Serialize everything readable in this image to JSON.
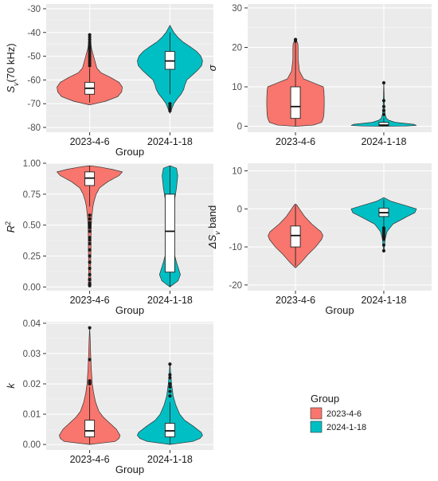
{
  "chart_data": [
    {
      "type": "violin",
      "id": "sv",
      "ylabel": "S_v(70 kHz)",
      "xlabel": "Group",
      "categories": [
        "2023-4-6",
        "2024-1-18"
      ],
      "ylim": [
        -82,
        -28
      ],
      "yticks": [
        -30,
        -40,
        -50,
        -60,
        -70,
        -80
      ],
      "series": [
        {
          "name": "2023-4-6",
          "color": "#F8766D",
          "profile": [
            [
              -70.5,
              0
            ],
            [
              -69,
              0.48
            ],
            [
              -67,
              0.86
            ],
            [
              -65,
              0.98
            ],
            [
              -63,
              1.0
            ],
            [
              -61,
              0.9
            ],
            [
              -59,
              0.65
            ],
            [
              -57,
              0.35
            ],
            [
              -55,
              0.22
            ],
            [
              -53,
              0.18
            ],
            [
              -51,
              0.14
            ],
            [
              -49,
              0.1
            ],
            [
              -47,
              0.06
            ],
            [
              -45,
              0.04
            ],
            [
              -42,
              0.02
            ],
            [
              -41,
              0
            ]
          ],
          "box": {
            "min": -69.5,
            "q1": -66,
            "median": -63.5,
            "q3": -61,
            "max": -55
          },
          "outliers": [
            -41,
            -42,
            -43,
            -44,
            -45,
            -46,
            -47,
            -48,
            -49,
            -50,
            -51,
            -52,
            -53,
            -54
          ]
        },
        {
          "name": "2024-1-18",
          "color": "#00BFC4",
          "profile": [
            [
              -74,
              0
            ],
            [
              -72,
              0.06
            ],
            [
              -70,
              0.12
            ],
            [
              -68,
              0.22
            ],
            [
              -66,
              0.34
            ],
            [
              -64,
              0.42
            ],
            [
              -62,
              0.46
            ],
            [
              -60,
              0.52
            ],
            [
              -58,
              0.68
            ],
            [
              -56,
              0.84
            ],
            [
              -54,
              0.97
            ],
            [
              -52,
              1.0
            ],
            [
              -50,
              0.95
            ],
            [
              -48,
              0.82
            ],
            [
              -46,
              0.62
            ],
            [
              -44,
              0.4
            ],
            [
              -42,
              0.24
            ],
            [
              -40,
              0.12
            ],
            [
              -38,
              0.04
            ],
            [
              -37,
              0
            ]
          ],
          "box": {
            "min": -66,
            "q1": -55.5,
            "median": -52,
            "q3": -48,
            "max": -40
          },
          "outliers": [
            -70,
            -71,
            -72,
            -73
          ]
        }
      ]
    },
    {
      "type": "violin",
      "id": "sigma",
      "ylabel": "σ",
      "xlabel": "",
      "categories": [
        "2023-4-6",
        "2024-1-18"
      ],
      "ylim": [
        -1.5,
        31
      ],
      "yticks": [
        0,
        10,
        20,
        30
      ],
      "series": [
        {
          "name": "2023-4-6",
          "color": "#F8766D",
          "profile": [
            [
              0,
              0
            ],
            [
              0.3,
              0.55
            ],
            [
              1,
              0.8
            ],
            [
              2,
              0.85
            ],
            [
              3,
              0.87
            ],
            [
              5,
              0.88
            ],
            [
              7,
              0.88
            ],
            [
              9,
              0.87
            ],
            [
              10,
              0.85
            ],
            [
              11,
              0.55
            ],
            [
              12,
              0.25
            ],
            [
              14,
              0.12
            ],
            [
              17,
              0.08
            ],
            [
              20,
              0.08
            ],
            [
              21,
              0.07
            ],
            [
              22,
              0
            ]
          ],
          "box": {
            "min": 0,
            "q1": 2,
            "median": 5,
            "q3": 10,
            "max": 21.5
          },
          "outliers": [
            21.6,
            22
          ]
        },
        {
          "name": "2024-1-18",
          "color": "#00BFC4",
          "profile": [
            [
              0,
              0
            ],
            [
              0.05,
              0.6
            ],
            [
              0.2,
              1.0
            ],
            [
              0.5,
              0.92
            ],
            [
              1,
              0.35
            ],
            [
              1.5,
              0.16
            ],
            [
              2,
              0.08
            ],
            [
              3,
              0.04
            ],
            [
              5,
              0.02
            ],
            [
              8,
              0.01
            ],
            [
              11.5,
              0
            ]
          ],
          "box": {
            "min": 0,
            "q1": 0.1,
            "median": 0.3,
            "q3": 1.0,
            "max": 2.2
          },
          "outliers": [
            3,
            4,
            5,
            6.5,
            11
          ]
        }
      ]
    },
    {
      "type": "violin",
      "id": "r2",
      "ylabel": "R^2",
      "xlabel": "Group",
      "categories": [
        "2023-4-6",
        "2024-1-18"
      ],
      "ylim": [
        -0.03,
        1.0
      ],
      "yticks": [
        0.0,
        0.25,
        0.5,
        0.75,
        1.0
      ],
      "series": [
        {
          "name": "2023-4-6",
          "color": "#F8766D",
          "profile": [
            [
              0,
              0
            ],
            [
              0.05,
              0.04
            ],
            [
              0.1,
              0.03
            ],
            [
              0.2,
              0.03
            ],
            [
              0.3,
              0.04
            ],
            [
              0.4,
              0.04
            ],
            [
              0.5,
              0.05
            ],
            [
              0.55,
              0.06
            ],
            [
              0.6,
              0.08
            ],
            [
              0.65,
              0.1
            ],
            [
              0.7,
              0.14
            ],
            [
              0.75,
              0.2
            ],
            [
              0.8,
              0.3
            ],
            [
              0.85,
              0.55
            ],
            [
              0.9,
              0.9
            ],
            [
              0.93,
              1.0
            ],
            [
              0.95,
              0.7
            ],
            [
              0.97,
              0.3
            ],
            [
              0.98,
              0
            ]
          ],
          "box": {
            "min": 0.65,
            "q1": 0.82,
            "median": 0.88,
            "q3": 0.93,
            "max": 0.98
          },
          "outliers": [
            0.01,
            0.02,
            0.03,
            0.06,
            0.1,
            0.15,
            0.2,
            0.25,
            0.3,
            0.35,
            0.38,
            0.4,
            0.45,
            0.48,
            0.5,
            0.52,
            0.55,
            0.58
          ]
        },
        {
          "name": "2024-1-18",
          "color": "#00BFC4",
          "profile": [
            [
              0,
              0
            ],
            [
              0.05,
              0.25
            ],
            [
              0.1,
              0.32
            ],
            [
              0.2,
              0.2
            ],
            [
              0.3,
              0.1
            ],
            [
              0.4,
              0.07
            ],
            [
              0.5,
              0.08
            ],
            [
              0.6,
              0.1
            ],
            [
              0.7,
              0.14
            ],
            [
              0.8,
              0.2
            ],
            [
              0.9,
              0.24
            ],
            [
              0.96,
              0.2
            ],
            [
              0.98,
              0
            ]
          ],
          "box": {
            "min": 0,
            "q1": 0.12,
            "median": 0.45,
            "q3": 0.75,
            "max": 0.98
          },
          "outliers": []
        }
      ]
    },
    {
      "type": "violin",
      "id": "dsv",
      "ylabel": "ΔS_v band",
      "xlabel": "Group",
      "categories": [
        "2023-4-6",
        "2024-1-18"
      ],
      "ylim": [
        -21.5,
        12
      ],
      "yticks": [
        10,
        0,
        -10,
        -20
      ],
      "series": [
        {
          "name": "2023-4-6",
          "color": "#F8766D",
          "profile": [
            [
              -15.5,
              0
            ],
            [
              -14,
              0.18
            ],
            [
              -12,
              0.38
            ],
            [
              -10,
              0.62
            ],
            [
              -8,
              0.8
            ],
            [
              -7,
              0.84
            ],
            [
              -6,
              0.78
            ],
            [
              -4,
              0.5
            ],
            [
              -2,
              0.28
            ],
            [
              0,
              0.12
            ],
            [
              1,
              0.04
            ],
            [
              1.3,
              0
            ]
          ],
          "box": {
            "min": -15,
            "q1": -10,
            "median": -7,
            "q3": -4.5,
            "max": 1
          },
          "outliers": []
        },
        {
          "name": "2024-1-18",
          "color": "#00BFC4",
          "profile": [
            [
              -11.5,
              0
            ],
            [
              -10,
              0.02
            ],
            [
              -8,
              0.04
            ],
            [
              -6,
              0.1
            ],
            [
              -4,
              0.28
            ],
            [
              -2,
              0.72
            ],
            [
              -1,
              0.95
            ],
            [
              0,
              1.0
            ],
            [
              1,
              0.62
            ],
            [
              2,
              0.22
            ],
            [
              3,
              0
            ]
          ],
          "box": {
            "min": -4.5,
            "q1": -2,
            "median": -1,
            "q3": 0.2,
            "max": 2.5
          },
          "outliers": [
            -5,
            -5.5,
            -6,
            -6.5,
            -7,
            -7.5,
            -8,
            -9.5,
            -11
          ]
        }
      ]
    },
    {
      "type": "violin",
      "id": "k",
      "ylabel": "k",
      "xlabel": "Group",
      "categories": [
        "2023-4-6",
        "2024-1-18"
      ],
      "ylim": [
        -0.0018,
        0.0405
      ],
      "yticks": [
        0.0,
        0.01,
        0.02,
        0.03,
        0.04
      ],
      "series": [
        {
          "name": "2023-4-6",
          "color": "#F8766D",
          "profile": [
            [
              0,
              0
            ],
            [
              0.001,
              0.78
            ],
            [
              0.002,
              0.9
            ],
            [
              0.003,
              0.93
            ],
            [
              0.005,
              0.82
            ],
            [
              0.007,
              0.62
            ],
            [
              0.009,
              0.42
            ],
            [
              0.011,
              0.28
            ],
            [
              0.014,
              0.18
            ],
            [
              0.017,
              0.12
            ],
            [
              0.02,
              0.08
            ],
            [
              0.025,
              0.05
            ],
            [
              0.03,
              0.03
            ],
            [
              0.035,
              0.015
            ],
            [
              0.0385,
              0
            ]
          ],
          "box": {
            "min": 0,
            "q1": 0.0025,
            "median": 0.0045,
            "q3": 0.008,
            "max": 0.019
          },
          "outliers": [
            0.02,
            0.0205,
            0.021,
            0.028,
            0.0385
          ]
        },
        {
          "name": "2024-1-18",
          "color": "#00BFC4",
          "profile": [
            [
              0,
              0
            ],
            [
              0.001,
              0.7
            ],
            [
              0.002,
              0.92
            ],
            [
              0.003,
              1.0
            ],
            [
              0.004,
              0.96
            ],
            [
              0.006,
              0.72
            ],
            [
              0.008,
              0.45
            ],
            [
              0.01,
              0.3
            ],
            [
              0.013,
              0.18
            ],
            [
              0.016,
              0.1
            ],
            [
              0.02,
              0.05
            ],
            [
              0.024,
              0.02
            ],
            [
              0.027,
              0
            ]
          ],
          "box": {
            "min": 0,
            "q1": 0.0025,
            "median": 0.0045,
            "q3": 0.007,
            "max": 0.014
          },
          "outliers": [
            0.016,
            0.0175,
            0.019,
            0.02,
            0.022,
            0.023,
            0.0265
          ]
        }
      ]
    }
  ],
  "legend": {
    "title": "Group",
    "items": [
      {
        "label": "2023-4-6",
        "color": "#F8766D"
      },
      {
        "label": "2024-1-18",
        "color": "#00BFC4"
      }
    ]
  },
  "colors": {
    "panel_background": "#EBEBEB",
    "grid": "#FFFFFF",
    "outline": "#333333"
  }
}
